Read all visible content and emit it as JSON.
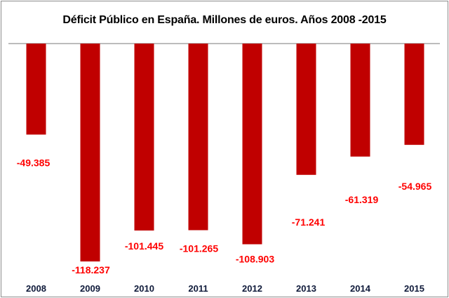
{
  "chart_data": {
    "type": "bar",
    "title": "Déficit Público en España. Millones de euros. Años 2008 -2015",
    "categories": [
      "2008",
      "2009",
      "2010",
      "2011",
      "2012",
      "2013",
      "2014",
      "2015"
    ],
    "values": [
      -49385,
      -118237,
      -101445,
      -101265,
      -108903,
      -71241,
      -61319,
      -54965
    ],
    "data_labels": [
      "-49.385",
      "-118.237",
      "-101.445",
      "-101.265",
      "-108.903",
      "-71.241",
      "-61.319",
      "-54.965"
    ],
    "xlabel": "",
    "ylabel": "",
    "ylim": [
      -118237,
      0
    ],
    "grid": false,
    "legend": "none",
    "colors": {
      "bar": "#c00000",
      "data_label": "#ff0000",
      "axis": "#a6a6a6",
      "category_label": "#0f1a3a"
    }
  }
}
